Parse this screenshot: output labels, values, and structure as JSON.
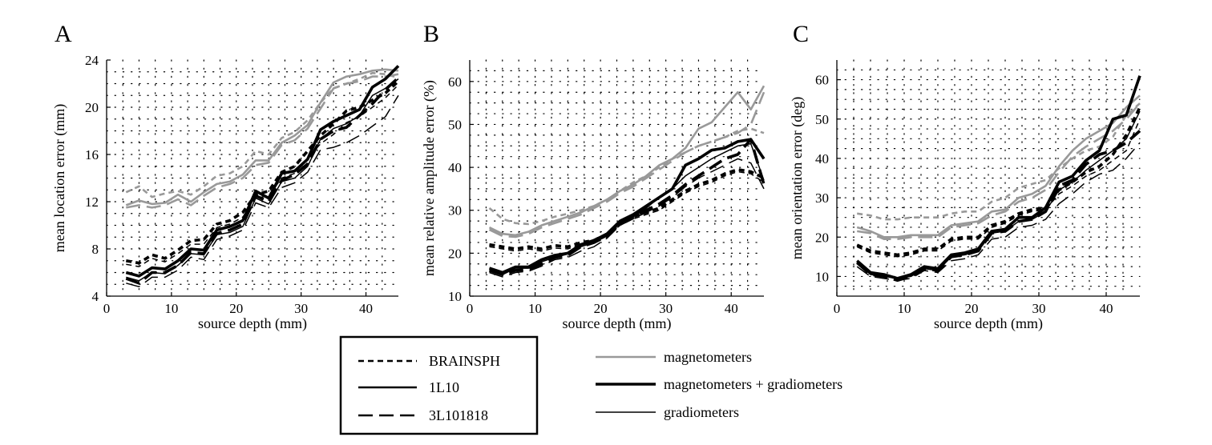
{
  "colors": {
    "gray": "#999999",
    "black": "#000000"
  },
  "legend": {
    "models": [
      {
        "label": "BRAINSPH",
        "dash": "short-dash"
      },
      {
        "label": "1L10",
        "dash": "solid"
      },
      {
        "label": "3L101818",
        "dash": "long-dash"
      }
    ],
    "sensors": [
      {
        "label": "magnetometers",
        "color": "gray",
        "weight": "medium"
      },
      {
        "label": "magnetometers + gradiometers",
        "color": "black",
        "weight": "thick"
      },
      {
        "label": "gradiometers",
        "color": "black",
        "weight": "thin"
      }
    ]
  },
  "chart_data": [
    {
      "type": "line",
      "panel": "A",
      "xlabel": "source depth (mm)",
      "ylabel": "mean location error (mm)",
      "xlim": [
        0,
        45
      ],
      "ylim": [
        4,
        24
      ],
      "xticks": [
        0,
        10,
        20,
        30,
        40
      ],
      "yticks": [
        4,
        8,
        12,
        16,
        20,
        24
      ],
      "grid": true,
      "x": [
        3,
        5,
        7,
        9,
        11,
        13,
        15,
        17,
        19,
        21,
        23,
        25,
        27,
        29,
        31,
        33,
        35,
        37,
        39,
        41,
        43,
        45
      ],
      "series": [
        {
          "model": "BRAINSPH",
          "sensor": "magnetometers",
          "values": [
            12.8,
            13.3,
            12.4,
            12.7,
            12.9,
            12.6,
            13.3,
            14.2,
            14.4,
            15.0,
            16.3,
            16.0,
            17.4,
            17.9,
            18.9,
            20.4,
            21.6,
            22.0,
            22.4,
            22.9,
            22.8,
            22.5
          ]
        },
        {
          "model": "1L10",
          "sensor": "magnetometers",
          "values": [
            11.7,
            12.1,
            11.8,
            11.9,
            12.6,
            12.0,
            12.8,
            13.5,
            13.7,
            14.3,
            15.5,
            15.5,
            17.0,
            17.6,
            18.5,
            20.4,
            22.1,
            22.6,
            22.8,
            23.1,
            23.2,
            23.1
          ]
        },
        {
          "model": "3L101818",
          "sensor": "magnetometers",
          "values": [
            11.5,
            11.7,
            11.5,
            11.7,
            12.2,
            11.7,
            12.5,
            13.2,
            13.5,
            14.0,
            15.1,
            15.3,
            16.8,
            17.2,
            18.2,
            19.9,
            21.6,
            22.0,
            22.2,
            22.6,
            22.6,
            22.8
          ]
        },
        {
          "model": "BRAINSPH",
          "sensor": "magnetometers + gradiometers",
          "values": [
            7.0,
            6.8,
            7.5,
            7.2,
            7.9,
            8.7,
            8.8,
            10.1,
            10.4,
            11.1,
            12.6,
            12.9,
            14.5,
            15.0,
            16.3,
            17.6,
            18.6,
            19.7,
            20.0,
            20.6,
            21.2,
            22.2
          ]
        },
        {
          "model": "1L10",
          "sensor": "magnetometers + gradiometers",
          "values": [
            6.0,
            5.7,
            6.4,
            6.3,
            7.0,
            8.0,
            7.9,
            9.6,
            9.9,
            10.4,
            12.9,
            12.3,
            14.4,
            14.6,
            15.6,
            18.1,
            18.8,
            19.3,
            19.8,
            21.7,
            22.4,
            23.5
          ]
        },
        {
          "model": "3L101818",
          "sensor": "magnetometers + gradiometers",
          "values": [
            5.5,
            5.1,
            6.0,
            6.0,
            6.6,
            7.7,
            7.6,
            9.3,
            9.6,
            10.1,
            12.5,
            12.0,
            13.8,
            14.3,
            15.2,
            17.3,
            18.0,
            18.3,
            19.3,
            20.3,
            21.5,
            22.5
          ]
        },
        {
          "model": "BRAINSPH",
          "sensor": "gradiometers",
          "values": [
            6.7,
            6.5,
            7.2,
            6.9,
            7.6,
            8.4,
            8.4,
            9.8,
            10.1,
            10.7,
            12.3,
            12.5,
            14.0,
            14.4,
            15.7,
            16.9,
            17.7,
            18.7,
            19.2,
            20.0,
            20.8,
            21.9
          ]
        },
        {
          "model": "1L10",
          "sensor": "gradiometers",
          "values": [
            5.6,
            5.3,
            6.0,
            5.9,
            6.6,
            7.6,
            7.5,
            9.2,
            9.4,
            9.9,
            12.3,
            11.8,
            13.7,
            14.0,
            15.0,
            17.3,
            18.2,
            18.6,
            19.3,
            21.0,
            21.6,
            22.4
          ]
        },
        {
          "model": "3L101818",
          "sensor": "gradiometers",
          "values": [
            5.1,
            4.8,
            5.6,
            5.6,
            6.2,
            7.3,
            7.1,
            8.8,
            9.1,
            9.6,
            11.9,
            11.5,
            13.2,
            13.6,
            14.5,
            16.4,
            16.6,
            17.0,
            17.6,
            18.4,
            19.2,
            21.0
          ]
        }
      ]
    },
    {
      "type": "line",
      "panel": "B",
      "xlabel": "source depth (mm)",
      "ylabel": "mean relative amplitude error (%)",
      "xlim": [
        0,
        45
      ],
      "ylim": [
        10,
        65
      ],
      "xticks": [
        0,
        10,
        20,
        30,
        40
      ],
      "yticks": [
        10,
        20,
        30,
        40,
        50,
        60
      ],
      "grid": true,
      "x": [
        3,
        5,
        7,
        9,
        11,
        13,
        15,
        17,
        19,
        21,
        23,
        25,
        27,
        29,
        31,
        33,
        35,
        37,
        39,
        41,
        43,
        45
      ],
      "series": [
        {
          "model": "BRAINSPH",
          "sensor": "magnetometers",
          "values": [
            30.5,
            28.0,
            27.0,
            26.8,
            27.5,
            28.5,
            29.2,
            30.0,
            31.0,
            32.5,
            34.5,
            36.5,
            38.0,
            40.0,
            42.0,
            43.5,
            45.0,
            46.0,
            47.0,
            48.5,
            49.0,
            48.0
          ]
        },
        {
          "model": "1L10",
          "sensor": "magnetometers",
          "values": [
            26.0,
            24.5,
            24.2,
            25.0,
            26.5,
            27.5,
            28.5,
            29.5,
            31.0,
            32.5,
            34.5,
            36.0,
            38.0,
            40.5,
            42.0,
            44.5,
            49.0,
            50.5,
            54.0,
            57.5,
            53.5,
            59.0
          ]
        },
        {
          "model": "3L101818",
          "sensor": "magnetometers",
          "values": [
            25.5,
            24.0,
            23.8,
            24.5,
            26.0,
            27.0,
            28.0,
            29.0,
            30.5,
            32.0,
            34.0,
            35.5,
            37.5,
            39.5,
            41.5,
            43.5,
            45.0,
            46.0,
            47.0,
            48.0,
            50.0,
            57.5
          ]
        },
        {
          "model": "BRAINSPH",
          "sensor": "magnetometers + gradiometers",
          "values": [
            22.0,
            21.5,
            21.0,
            21.5,
            21.0,
            21.8,
            21.5,
            22.5,
            23.0,
            24.5,
            27.0,
            28.5,
            29.5,
            30.5,
            32.5,
            34.5,
            36.0,
            37.0,
            38.5,
            39.5,
            39.0,
            37.5
          ]
        },
        {
          "model": "1L10",
          "sensor": "magnetometers + gradiometers",
          "values": [
            16.5,
            15.5,
            16.8,
            16.8,
            18.5,
            19.5,
            20.0,
            22.0,
            23.0,
            24.5,
            27.5,
            29.0,
            31.0,
            33.0,
            35.0,
            40.5,
            42.0,
            44.0,
            44.5,
            46.0,
            46.5,
            42.0
          ]
        },
        {
          "model": "3L101818",
          "sensor": "magnetometers + gradiometers",
          "values": [
            16.0,
            15.0,
            16.0,
            16.2,
            17.5,
            19.0,
            19.5,
            21.5,
            22.5,
            24.0,
            27.0,
            28.5,
            30.0,
            31.5,
            33.5,
            36.0,
            38.0,
            40.0,
            42.0,
            43.0,
            46.5,
            36.0
          ]
        },
        {
          "model": "BRAINSPH",
          "sensor": "gradiometers",
          "values": [
            21.5,
            21.0,
            20.5,
            21.0,
            20.5,
            21.2,
            21.0,
            22.0,
            22.5,
            24.0,
            26.5,
            28.0,
            29.0,
            30.0,
            32.0,
            34.0,
            35.5,
            36.5,
            38.0,
            39.0,
            38.5,
            36.5
          ]
        },
        {
          "model": "1L10",
          "sensor": "gradiometers",
          "values": [
            16.0,
            15.0,
            16.5,
            16.5,
            18.0,
            19.0,
            19.8,
            21.5,
            22.5,
            24.0,
            27.0,
            28.5,
            30.5,
            33.0,
            35.0,
            38.0,
            40.0,
            42.0,
            43.5,
            45.0,
            45.5,
            37.0
          ]
        },
        {
          "model": "3L101818",
          "sensor": "gradiometers",
          "values": [
            15.5,
            14.5,
            15.5,
            15.8,
            17.0,
            18.5,
            19.0,
            20.5,
            21.5,
            23.5,
            26.5,
            28.0,
            29.5,
            31.0,
            33.0,
            35.5,
            37.5,
            39.0,
            40.5,
            42.0,
            41.0,
            35.0
          ]
        }
      ]
    },
    {
      "type": "line",
      "panel": "C",
      "xlabel": "source depth (mm)",
      "ylabel": "mean orientation error (deg)",
      "xlim": [
        0,
        45
      ],
      "ylim": [
        5,
        65
      ],
      "xticks": [
        0,
        10,
        20,
        30,
        40
      ],
      "yticks": [
        10,
        20,
        30,
        40,
        50,
        60
      ],
      "grid": true,
      "x": [
        3,
        5,
        7,
        9,
        11,
        13,
        15,
        17,
        19,
        21,
        23,
        25,
        27,
        29,
        31,
        33,
        35,
        37,
        39,
        41,
        43,
        45
      ],
      "series": [
        {
          "model": "BRAINSPH",
          "sensor": "magnetometers",
          "values": [
            26.0,
            25.5,
            24.5,
            24.5,
            25.0,
            25.0,
            25.0,
            26.0,
            26.5,
            26.5,
            29.0,
            30.0,
            32.5,
            33.5,
            34.5,
            37.5,
            40.0,
            42.0,
            43.0,
            45.5,
            51.0,
            54.0
          ]
        },
        {
          "model": "1L10",
          "sensor": "magnetometers",
          "values": [
            22.5,
            21.5,
            20.0,
            20.0,
            20.5,
            20.5,
            20.5,
            23.0,
            23.5,
            24.0,
            26.5,
            27.0,
            30.0,
            31.0,
            33.0,
            38.0,
            42.0,
            45.0,
            47.0,
            49.0,
            53.0,
            56.0
          ]
        },
        {
          "model": "3L101818",
          "sensor": "magnetometers",
          "values": [
            21.5,
            21.0,
            19.5,
            19.5,
            20.0,
            20.0,
            20.0,
            22.5,
            23.0,
            23.5,
            25.5,
            26.5,
            29.0,
            30.0,
            32.0,
            36.5,
            40.5,
            43.0,
            45.0,
            47.0,
            50.0,
            54.0
          ]
        },
        {
          "model": "BRAINSPH",
          "sensor": "magnetometers + gradiometers",
          "values": [
            18.0,
            16.5,
            16.0,
            15.5,
            16.0,
            17.0,
            17.0,
            19.5,
            20.0,
            20.0,
            23.0,
            24.0,
            26.0,
            27.0,
            27.5,
            32.0,
            34.0,
            36.5,
            38.0,
            41.0,
            46.0,
            53.0
          ]
        },
        {
          "model": "1L10",
          "sensor": "magnetometers + gradiometers",
          "values": [
            14.0,
            11.0,
            10.5,
            9.5,
            10.5,
            12.5,
            12.0,
            15.5,
            16.0,
            17.0,
            21.5,
            22.0,
            25.0,
            25.0,
            27.5,
            34.0,
            35.5,
            39.5,
            42.0,
            50.0,
            51.0,
            61.0
          ]
        },
        {
          "model": "3L101818",
          "sensor": "magnetometers + gradiometers",
          "values": [
            13.5,
            10.5,
            10.0,
            9.0,
            10.0,
            12.0,
            11.5,
            15.0,
            15.5,
            16.5,
            21.0,
            21.5,
            24.0,
            24.5,
            26.5,
            33.0,
            34.5,
            38.5,
            41.0,
            42.0,
            44.0,
            47.0
          ]
        },
        {
          "model": "BRAINSPH",
          "sensor": "gradiometers",
          "values": [
            17.5,
            16.0,
            15.5,
            15.0,
            15.5,
            16.5,
            16.5,
            19.0,
            19.5,
            19.5,
            22.5,
            23.5,
            25.5,
            26.5,
            27.0,
            31.0,
            33.0,
            35.5,
            37.0,
            39.5,
            42.0,
            50.0
          ]
        },
        {
          "model": "1L10",
          "sensor": "gradiometers",
          "values": [
            13.5,
            10.5,
            10.0,
            9.5,
            10.0,
            12.0,
            11.5,
            15.0,
            15.5,
            16.5,
            21.0,
            21.5,
            24.0,
            24.5,
            26.5,
            32.0,
            34.0,
            37.0,
            39.5,
            42.0,
            45.0,
            52.0
          ]
        },
        {
          "model": "3L101818",
          "sensor": "gradiometers",
          "values": [
            12.5,
            10.0,
            9.5,
            9.0,
            9.5,
            11.5,
            11.0,
            14.0,
            14.5,
            15.5,
            19.5,
            20.0,
            22.5,
            23.0,
            24.5,
            28.5,
            31.0,
            34.0,
            36.0,
            37.0,
            40.0,
            44.0
          ]
        }
      ]
    }
  ]
}
